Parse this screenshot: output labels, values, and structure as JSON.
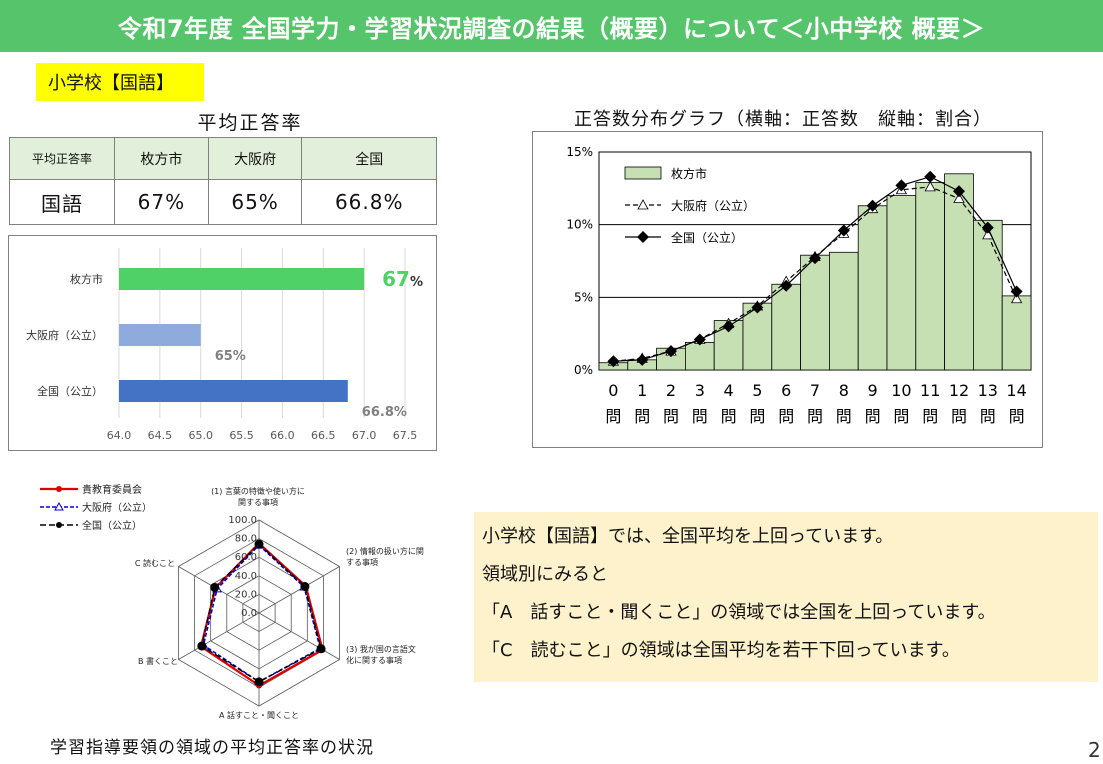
{
  "title": "令和7年度 全国学力・学習状況調査の結果（概要）について＜小中学校 概要＞",
  "section_tag": "小学校【国語】",
  "rate_table": {
    "caption": "平均正答率",
    "headers": [
      "平均正答率",
      "枚方市",
      "大阪府",
      "全国"
    ],
    "row": [
      "国語",
      "67%",
      "65%",
      "66.8%"
    ]
  },
  "colors": {
    "hirakata": "#4fd167",
    "osaka": "#8faadc",
    "zenkoku": "#4472c4",
    "dist_bar": "#c6e0b4",
    "title_bg": "#55c46a"
  },
  "chart_data": [
    {
      "type": "bar",
      "orientation": "horizontal",
      "categories": [
        "枚方市",
        "大阪府（公立）",
        "全国（公立）"
      ],
      "values": [
        67,
        65,
        66.8
      ],
      "value_labels": [
        "67",
        "65%",
        "66.8%"
      ],
      "value_suffix": "%",
      "xlim": [
        64.0,
        67.5
      ],
      "x_ticks": [
        "64.0",
        "64.5",
        "65.0",
        "65.5",
        "66.0",
        "66.5",
        "67.0",
        "67.5"
      ]
    },
    {
      "type": "bar",
      "title": "正答数分布グラフ（横軸：正答数　縦軸：割合）",
      "categories": [
        "0\n問",
        "1\n問",
        "2\n問",
        "3\n問",
        "4\n問",
        "5\n問",
        "6\n問",
        "7\n問",
        "8\n問",
        "9\n問",
        "10\n問",
        "11\n問",
        "12\n問",
        "13\n問",
        "14\n問"
      ],
      "x_numbers": [
        "0",
        "1",
        "2",
        "3",
        "4",
        "5",
        "6",
        "7",
        "8",
        "9",
        "10",
        "11",
        "12",
        "13",
        "14"
      ],
      "x_unit": "問",
      "y_ticks": [
        "0%",
        "5%",
        "10%",
        "15%"
      ],
      "ylim": [
        0,
        15
      ],
      "series": [
        {
          "name": "枚方市",
          "kind": "bar",
          "values": [
            0.5,
            0.7,
            1.5,
            1.9,
            3.4,
            4.6,
            5.9,
            7.9,
            8.1,
            11.3,
            12.0,
            12.9,
            13.5,
            10.3,
            5.1
          ]
        },
        {
          "name": "大阪府（公立）",
          "kind": "line",
          "values": [
            0.6,
            0.8,
            1.3,
            2.1,
            3.2,
            4.4,
            6.1,
            7.8,
            9.4,
            11.1,
            12.4,
            12.6,
            11.8,
            9.3,
            4.9
          ]
        },
        {
          "name": "全国（公立）",
          "kind": "line",
          "values": [
            0.6,
            0.7,
            1.3,
            2.1,
            3.0,
            4.3,
            5.8,
            7.7,
            9.6,
            11.3,
            12.7,
            13.3,
            12.3,
            9.8,
            5.4
          ]
        }
      ]
    },
    {
      "type": "radar",
      "axes": [
        "(1) 言葉の特徴や使い方に関する事項",
        "(2) 情報の扱い方に関する事項",
        "(3) 我が国の言語文化に関する事項",
        "A 話すこと・聞くこと",
        "B 書くこと",
        "C 読むこと"
      ],
      "r_ticks": [
        "0.0",
        "20.0",
        "40.0",
        "60.0",
        "80.0",
        "100.0"
      ],
      "rlim": [
        0,
        100
      ],
      "series": [
        {
          "name": "貴教育委員会",
          "values": [
            75,
            58,
            79,
            78,
            72,
            54
          ]
        },
        {
          "name": "大阪府（公立）",
          "values": [
            73,
            56,
            76,
            74,
            69,
            52
          ]
        },
        {
          "name": "全国（公立）",
          "values": [
            74,
            57,
            77,
            74,
            71,
            55
          ]
        }
      ]
    }
  ],
  "radar_caption": "学習指導要領の領域の平均正答率の状況",
  "summary_lines": [
    "小学校【国語】では、全国平均を上回っています。",
    "領域別にみると",
    "「A　話すこと・聞くこと」の領域では全国を上回っています。",
    "「C　読むこと」の領域は全国平均を若干下回っています。"
  ],
  "page_number": "2"
}
